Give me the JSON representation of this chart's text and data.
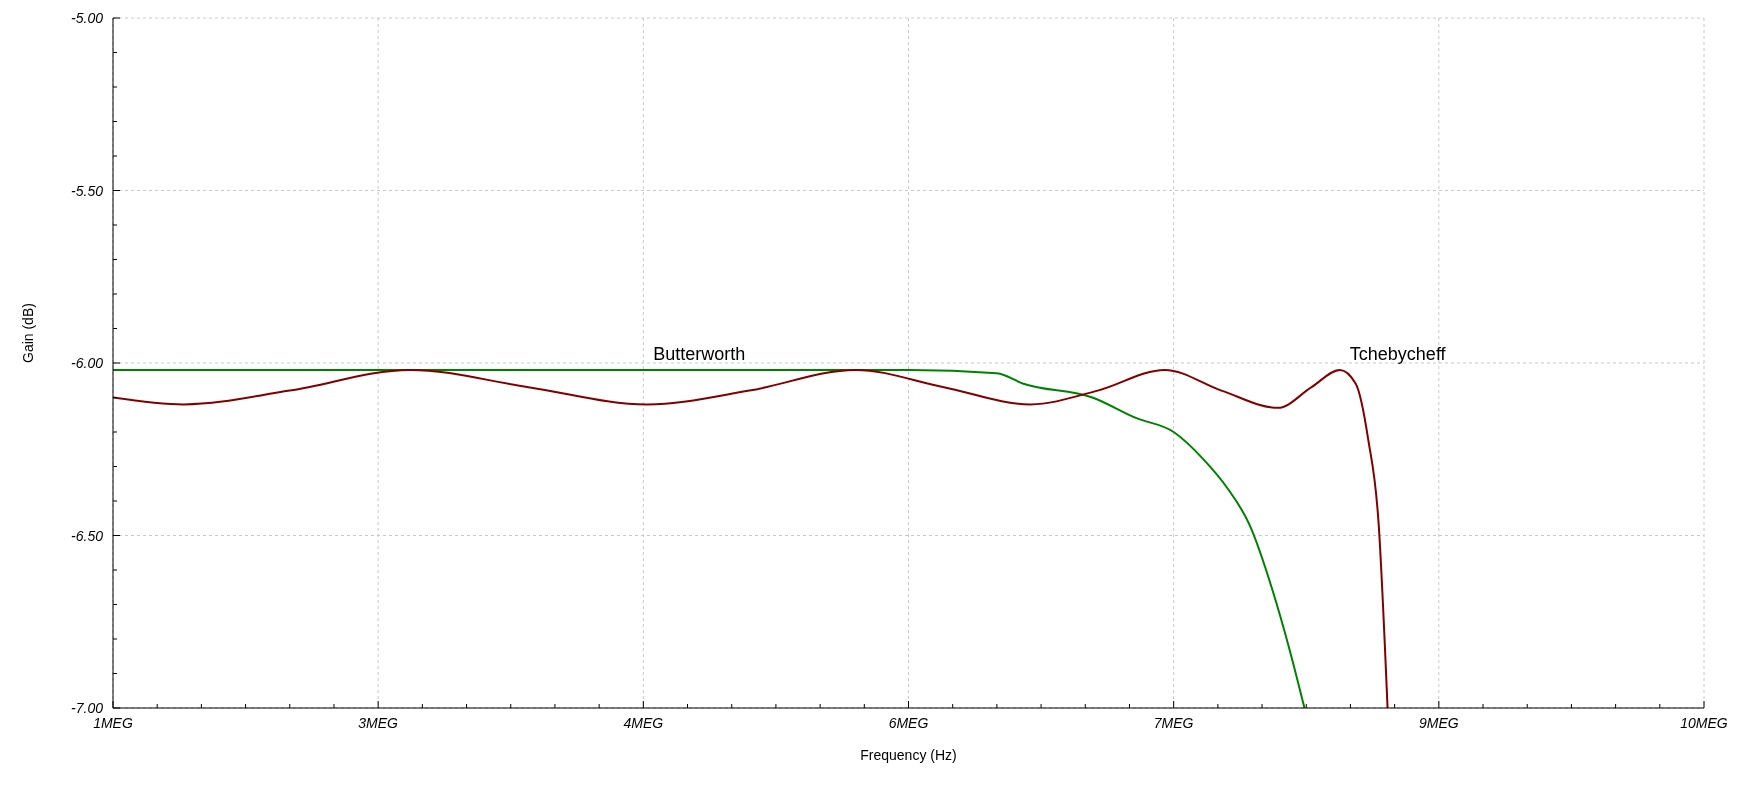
{
  "chart_data": {
    "type": "line",
    "xlabel": "Frequency (Hz)",
    "ylabel": "Gain (dB)",
    "xlim": [
      1,
      10
    ],
    "xticks": [
      {
        "value": 1,
        "label": "1MEG"
      },
      {
        "value": 1.25,
        "label": null
      },
      {
        "value": 1.5,
        "label": null
      },
      {
        "value": 1.75,
        "label": null
      },
      {
        "value": 2,
        "label": null
      },
      {
        "value": 2.25,
        "label": null
      },
      {
        "value": 2.5,
        "label": "3MEG"
      },
      {
        "value": 2.75,
        "label": null
      },
      {
        "value": 3,
        "label": null
      },
      {
        "value": 3.25,
        "label": null
      },
      {
        "value": 3.5,
        "label": null
      },
      {
        "value": 3.75,
        "label": null
      },
      {
        "value": 4,
        "label": "4MEG"
      },
      {
        "value": 4.25,
        "label": null
      },
      {
        "value": 4.5,
        "label": null
      },
      {
        "value": 4.75,
        "label": null
      },
      {
        "value": 5,
        "label": null
      },
      {
        "value": 5.25,
        "label": null
      },
      {
        "value": 5.5,
        "label": "6MEG"
      },
      {
        "value": 5.75,
        "label": null
      },
      {
        "value": 6,
        "label": null
      },
      {
        "value": 6.25,
        "label": null
      },
      {
        "value": 6.5,
        "label": null
      },
      {
        "value": 6.75,
        "label": null
      },
      {
        "value": 7,
        "label": "7MEG"
      },
      {
        "value": 7.25,
        "label": null
      },
      {
        "value": 7.5,
        "label": null
      },
      {
        "value": 7.75,
        "label": null
      },
      {
        "value": 8,
        "label": null
      },
      {
        "value": 8.25,
        "label": null
      },
      {
        "value": 8.5,
        "label": "9MEG"
      },
      {
        "value": 8.75,
        "label": null
      },
      {
        "value": 9,
        "label": null
      },
      {
        "value": 9.25,
        "label": null
      },
      {
        "value": 9.5,
        "label": null
      },
      {
        "value": 9.75,
        "label": null
      },
      {
        "value": 10,
        "label": "10MEG"
      }
    ],
    "ylim": [
      -7,
      -5
    ],
    "yticks": [
      {
        "value": -7,
        "label": "-7.00"
      },
      {
        "value": -6.9,
        "label": null
      },
      {
        "value": -6.8,
        "label": null
      },
      {
        "value": -6.7,
        "label": null
      },
      {
        "value": -6.6,
        "label": null
      },
      {
        "value": -6.5,
        "label": "-6.50"
      },
      {
        "value": -6.4,
        "label": null
      },
      {
        "value": -6.3,
        "label": null
      },
      {
        "value": -6.2,
        "label": null
      },
      {
        "value": -6.1,
        "label": null
      },
      {
        "value": -6,
        "label": "-6.00"
      },
      {
        "value": -5.9,
        "label": null
      },
      {
        "value": -5.8,
        "label": null
      },
      {
        "value": -5.7,
        "label": null
      },
      {
        "value": -5.6,
        "label": null
      },
      {
        "value": -5.5,
        "label": "-5.50"
      },
      {
        "value": -5.4,
        "label": null
      },
      {
        "value": -5.3,
        "label": null
      },
      {
        "value": -5.2,
        "label": null
      },
      {
        "value": -5.1,
        "label": null
      },
      {
        "value": -5,
        "label": "-5.00"
      }
    ],
    "grid": true,
    "marker": "none",
    "line_style": "solid",
    "series": [
      {
        "name": "Butterworth",
        "color": "#008000",
        "x": [
          1,
          2,
          3,
          4,
          5,
          5.5,
          6,
          6.15,
          6.54,
          6.79,
          7,
          7.17,
          7.3,
          7.43,
          7.56,
          7.65,
          7.74
        ],
        "values": [
          -6.02,
          -6.02,
          -6.02,
          -6.02,
          -6.02,
          -6.02,
          -6.03,
          -6.06,
          -6.1,
          -6.16,
          -6.2,
          -6.28,
          -6.36,
          -6.47,
          -6.66,
          -6.82,
          -7
        ]
      },
      {
        "name": "Tchebycheff",
        "color": "#800000",
        "x": [
          1,
          1.4,
          2,
          2.68,
          3.35,
          4.02,
          4.6,
          5.2,
          5.7,
          6.19,
          6.57,
          6.95,
          7.27,
          7.59,
          7.78,
          7.94,
          8.03,
          8.1,
          8.16,
          8.21
        ],
        "values": [
          -6.1,
          -6.12,
          -6.08,
          -6.02,
          -6.07,
          -6.12,
          -6.08,
          -6.02,
          -6.07,
          -6.12,
          -6.08,
          -6.02,
          -6.08,
          -6.13,
          -6.07,
          -6.02,
          -6.06,
          -6.22,
          -6.47,
          -7
        ]
      }
    ]
  }
}
